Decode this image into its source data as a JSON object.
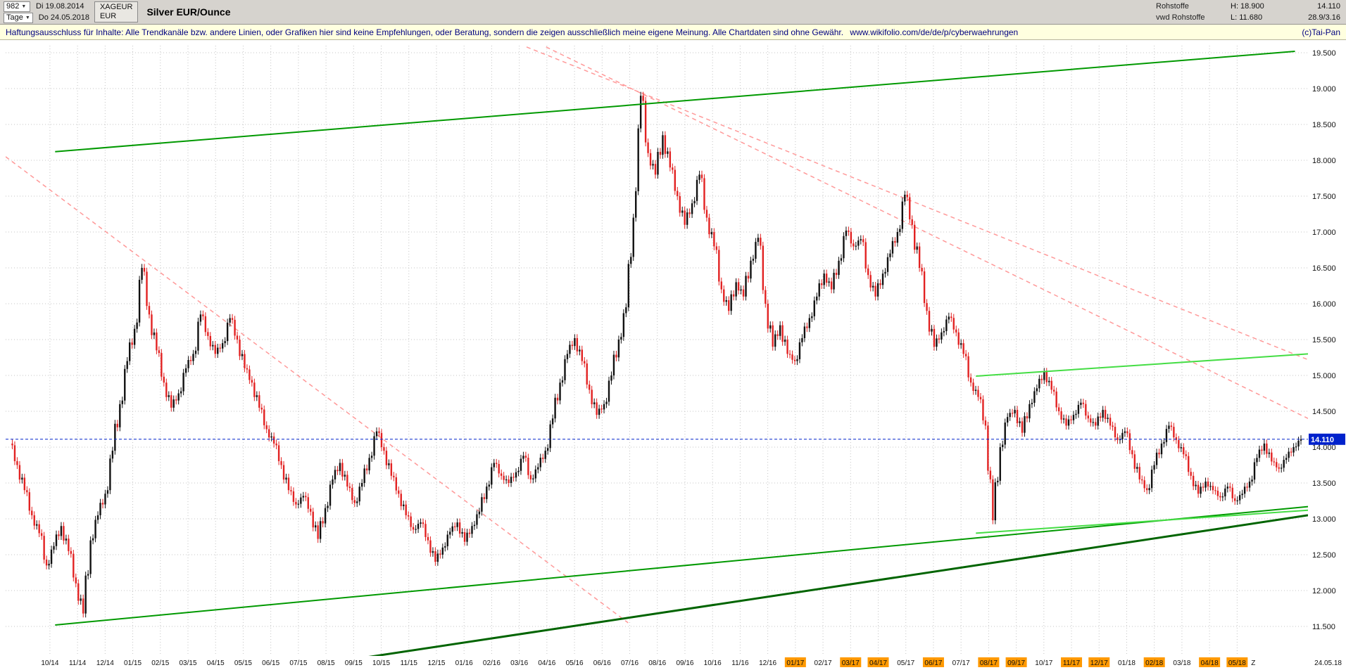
{
  "header": {
    "bars_count": "982",
    "date_start": "Di 19.08.2014",
    "timeframe": "Tage",
    "date_end": "Do 24.05.2018",
    "symbol": "XAGEUR",
    "currency": "EUR",
    "title": "Silver EUR/Ounce",
    "feed_line1": "Rohstoffe",
    "feed_line2": "vwd Rohstoffe",
    "high_label": "H: 18.900",
    "low_label": "L: 11.680",
    "last_price": "14.110",
    "extra_info": "28.9/3.16"
  },
  "disclaimer": {
    "text": "Haftungsausschluss für Inhalte: Alle Trendkanäle bzw. andere Linien, oder Grafiken hier sind keine Empfehlungen, oder Beratung, sondern die zeigen ausschließlich meine eigene Meinung. Alle Chartdaten sind ohne Gewähr.",
    "url": "www.wikifolio.com/de/de/p/cyberwaehrungen",
    "credit": "(c)Tai-Pan"
  },
  "chart_data": {
    "type": "candlestick",
    "title": "Silver EUR/Ounce",
    "symbol": "XAGEUR",
    "currency": "EUR",
    "bars": "982",
    "timeframe": "Tage",
    "range_start": "Di 19.08.2014",
    "range_end": "Do 24.05.2018",
    "high": 18.9,
    "low": 11.68,
    "last": 14.11,
    "ylim": [
      11.5,
      19.5
    ],
    "grid": true,
    "y_ticks": [
      "19.500",
      "19.000",
      "18.500",
      "18.000",
      "17.500",
      "17.000",
      "16.500",
      "16.000",
      "15.500",
      "15.000",
      "14.500",
      "14.000",
      "13.500",
      "13.000",
      "12.500",
      "12.000",
      "11.500"
    ],
    "x_labels": [
      "10/14",
      "11/14",
      "12/14",
      "01/15",
      "02/15",
      "03/15",
      "04/15",
      "05/15",
      "06/15",
      "07/15",
      "08/15",
      "09/15",
      "10/15",
      "11/15",
      "12/15",
      "01/16",
      "02/16",
      "03/16",
      "04/16",
      "05/16",
      "06/16",
      "07/16",
      "08/16",
      "09/16",
      "10/16",
      "11/16",
      "12/16",
      "01/17",
      "02/17",
      "03/17",
      "04/17",
      "05/17",
      "06/17",
      "07/17",
      "08/17",
      "09/17",
      "10/17",
      "11/17",
      "12/17",
      "01/18",
      "02/18",
      "03/18",
      "04/18",
      "05/18"
    ],
    "x_highlight_indices": [
      27,
      29,
      30,
      32,
      34,
      35,
      37,
      38,
      40,
      42,
      43
    ],
    "x_extra_labels": [
      {
        "label": "Z",
        "t": 0.958
      },
      {
        "label": "24.05.18",
        "t": 1.0
      }
    ],
    "closes": [
      14.05,
      13.75,
      13.4,
      13.05,
      12.8,
      12.35,
      12.62,
      12.9,
      12.55,
      12.1,
      11.68,
      12.7,
      13.05,
      13.35,
      13.95,
      14.6,
      15.2,
      15.65,
      16.5,
      15.85,
      15.35,
      14.9,
      14.55,
      14.75,
      15.1,
      15.3,
      15.85,
      15.55,
      15.3,
      15.45,
      15.8,
      15.5,
      15.1,
      14.9,
      14.55,
      14.25,
      14.05,
      13.75,
      13.4,
      13.2,
      13.32,
      13.1,
      12.72,
      13.15,
      13.55,
      13.78,
      13.45,
      13.22,
      13.5,
      13.85,
      14.22,
      13.95,
      13.6,
      13.35,
      13.05,
      12.85,
      12.95,
      12.7,
      12.4,
      12.6,
      12.82,
      12.95,
      12.68,
      12.9,
      13.1,
      13.45,
      13.78,
      13.6,
      13.5,
      13.65,
      13.88,
      13.55,
      13.72,
      13.95,
      14.4,
      14.9,
      15.3,
      15.52,
      15.2,
      14.8,
      14.45,
      14.6,
      15.0,
      15.5,
      15.95,
      17.2,
      18.9,
      18.1,
      17.8,
      18.35,
      17.9,
      17.5,
      17.1,
      17.4,
      17.8,
      17.2,
      16.8,
      16.2,
      15.9,
      16.3,
      16.1,
      16.6,
      16.92,
      16.0,
      15.4,
      15.7,
      15.3,
      15.2,
      15.52,
      15.8,
      16.1,
      16.42,
      16.2,
      16.6,
      17.02,
      16.8,
      16.9,
      16.4,
      16.1,
      16.42,
      16.7,
      17.0,
      17.52,
      17.1,
      16.5,
      15.9,
      15.4,
      15.6,
      15.82,
      15.6,
      15.3,
      14.9,
      14.7,
      14.3,
      12.98,
      14.0,
      14.42,
      14.52,
      14.2,
      14.6,
      14.82,
      15.05,
      14.8,
      14.5,
      14.3,
      14.45,
      14.62,
      14.4,
      14.3,
      14.52,
      14.3,
      14.1,
      14.22,
      13.9,
      13.55,
      13.4,
      13.75,
      14.05,
      14.3,
      14.1,
      13.9,
      13.6,
      13.35,
      13.52,
      13.4,
      13.3,
      13.45,
      13.25,
      13.35,
      13.52,
      13.85,
      14.05,
      13.8,
      13.7,
      13.85,
      14.0,
      14.11
    ],
    "last_price_line": {
      "price": 14.11,
      "label": "14.110",
      "color": "#0022cc"
    },
    "trendlines": [
      {
        "name": "upper-green-channel",
        "color": "#009900",
        "width": 2,
        "dash": false,
        "t0": 0.038,
        "p0": 18.12,
        "t1": 0.99,
        "p1": 19.52
      },
      {
        "name": "lower-green-channel",
        "color": "#009900",
        "width": 2,
        "dash": false,
        "t0": 0.038,
        "p0": 11.52,
        "t1": 1.0,
        "p1": 13.17
      },
      {
        "name": "main-support",
        "color": "#006400",
        "width": 3,
        "dash": false,
        "t0": 0.27,
        "p0": 11.05,
        "t1": 1.0,
        "p1": 13.05
      },
      {
        "name": "right-upper-bright",
        "color": "#44dd44",
        "width": 2,
        "dash": false,
        "t0": 0.745,
        "p0": 14.99,
        "t1": 1.0,
        "p1": 15.3
      },
      {
        "name": "right-lower-bright",
        "color": "#44dd44",
        "width": 2,
        "dash": false,
        "t0": 0.745,
        "p0": 12.8,
        "t1": 1.0,
        "p1": 13.12
      },
      {
        "name": "left-resistance",
        "color": "#ff9999",
        "width": 1.5,
        "dash": true,
        "t0": 0.0,
        "p0": 18.05,
        "t1": 0.478,
        "p1": 11.55
      },
      {
        "name": "peak-resistance-upper",
        "color": "#ff9999",
        "width": 1.5,
        "dash": true,
        "t0": 0.4,
        "p0": 19.58,
        "t1": 1.0,
        "p1": 15.22
      },
      {
        "name": "peak-resistance-lower",
        "color": "#ff9999",
        "width": 1.5,
        "dash": true,
        "t0": 0.415,
        "p0": 19.58,
        "t1": 1.0,
        "p1": 14.4
      }
    ],
    "colors": {
      "up_candle": "#111111",
      "down_candle": "#e22222",
      "grid": "#c4c4c4",
      "x_highlight": "#ff9900",
      "price_line": "#0022cc"
    }
  }
}
